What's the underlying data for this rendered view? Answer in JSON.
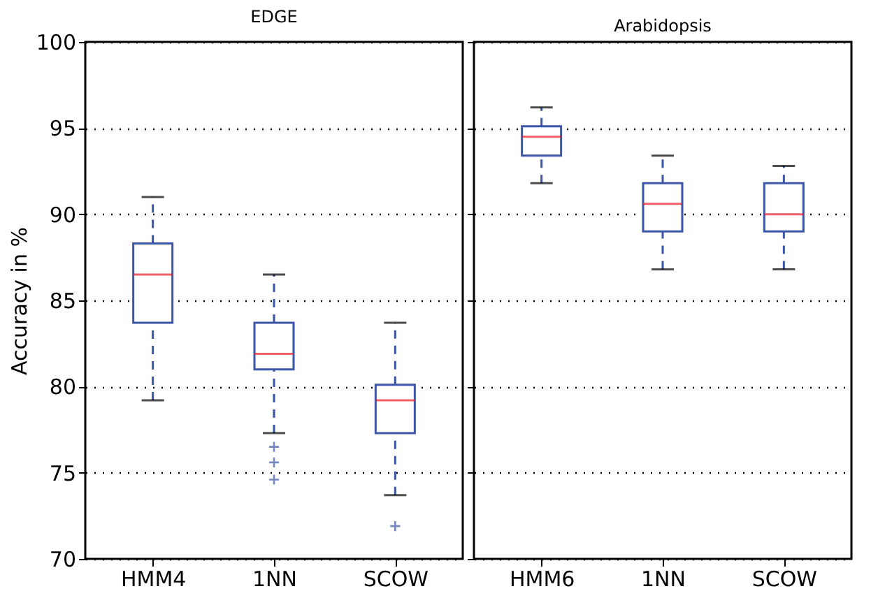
{
  "chart_data": [
    {
      "type": "box",
      "title": "EDGE",
      "ylabel": "Accuracy in %",
      "categories": [
        "HMM4",
        "1NN",
        "SCOW"
      ],
      "ylim": [
        70,
        100
      ],
      "yticks": [
        70,
        75,
        80,
        85,
        90,
        95,
        100
      ],
      "grid": "y",
      "series": [
        {
          "color": "#3b56a6",
          "boxes": [
            {
              "low": 79.2,
              "q1": 83.7,
              "median": 86.5,
              "q3": 88.3,
              "high": 91.0
            },
            {
              "low": 77.3,
              "q1": 81.0,
              "median": 81.9,
              "q3": 83.7,
              "high": 86.5,
              "outliers": [
                76.5,
                75.6,
                74.6
              ]
            },
            {
              "low": 73.7,
              "q1": 77.3,
              "median": 79.2,
              "q3": 80.1,
              "high": 83.7,
              "outliers": [
                71.9
              ]
            }
          ]
        }
      ]
    },
    {
      "type": "box",
      "title": "Arabidopsis",
      "categories": [
        "HMM6",
        "1NN",
        "SCOW"
      ],
      "ylim": [
        70,
        100
      ],
      "yticks": [
        70,
        75,
        80,
        85,
        90,
        95,
        100
      ],
      "grid": "y",
      "tick_labels": "x",
      "series": [
        {
          "color": "#3b56a6",
          "boxes": [
            {
              "low": 91.8,
              "q1": 93.4,
              "median": 94.5,
              "q3": 95.1,
              "high": 96.2
            },
            {
              "low": 86.8,
              "q1": 89.0,
              "median": 90.6,
              "q3": 91.8,
              "high": 93.4
            },
            {
              "low": 86.8,
              "q1": 89.0,
              "median": 90.0,
              "q3": 91.8,
              "high": 92.8
            }
          ]
        }
      ]
    }
  ]
}
